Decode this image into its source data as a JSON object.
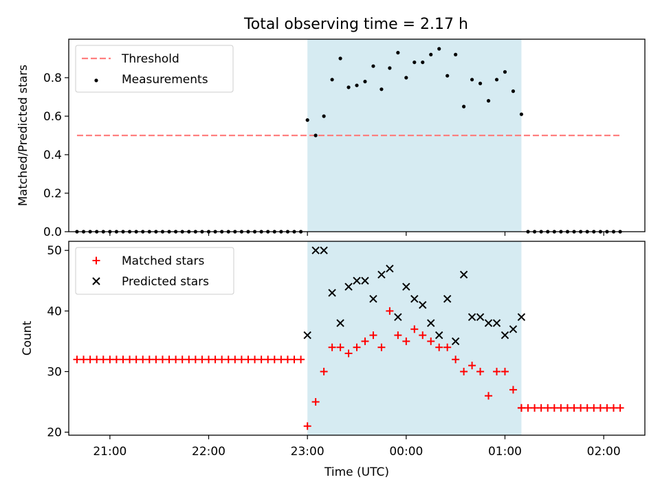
{
  "title": "Total observing time = 2.17 h",
  "colors": {
    "threshold": "#ff7f7f",
    "measurement": "#000000",
    "matched": "#ff0000",
    "predicted": "#000000",
    "observing_window": "#add8e6"
  },
  "chart_data": [
    {
      "type": "scatter",
      "panel": "top",
      "title": "Total observing time = 2.17 h",
      "xlabel": "",
      "ylabel": "Matched/Predicted stars",
      "x_axis": "time",
      "xlim": [
        "20:35",
        "02:25"
      ],
      "ylim": [
        0,
        1.0
      ],
      "yticks": [
        0.0,
        0.2,
        0.4,
        0.6,
        0.8
      ],
      "ytick_labels": [
        "0.0",
        "0.2",
        "0.4",
        "0.6",
        "0.8"
      ],
      "xticks": [
        "21:00",
        "22:00",
        "23:00",
        "00:00",
        "01:00",
        "02:00"
      ],
      "grid": false,
      "legend_position": "top-left",
      "shaded_region": {
        "start": "23:00",
        "end": "01:10"
      },
      "threshold": {
        "name": "Threshold",
        "y": 0.5,
        "x_start": "20:40",
        "x_end": "02:10",
        "style": "dashed"
      },
      "series": [
        {
          "name": "Measurements",
          "marker": "dot",
          "x": [
            "20:40",
            "20:44",
            "20:48",
            "20:52",
            "20:56",
            "21:00",
            "21:04",
            "21:08",
            "21:12",
            "21:16",
            "21:20",
            "21:24",
            "21:28",
            "21:32",
            "21:36",
            "21:40",
            "21:44",
            "21:48",
            "21:52",
            "21:56",
            "22:00",
            "22:04",
            "22:08",
            "22:12",
            "22:16",
            "22:20",
            "22:24",
            "22:28",
            "22:32",
            "22:36",
            "22:40",
            "22:44",
            "22:48",
            "22:52",
            "22:56",
            "23:00",
            "23:05",
            "23:10",
            "23:15",
            "23:20",
            "23:25",
            "23:30",
            "23:35",
            "23:40",
            "23:45",
            "23:50",
            "23:55",
            "00:00",
            "00:05",
            "00:10",
            "00:15",
            "00:20",
            "00:25",
            "00:30",
            "00:35",
            "00:40",
            "00:45",
            "00:50",
            "00:55",
            "01:00",
            "01:05",
            "01:10",
            "01:14",
            "01:18",
            "01:22",
            "01:26",
            "01:30",
            "01:34",
            "01:38",
            "01:42",
            "01:46",
            "01:50",
            "01:54",
            "01:58",
            "02:02",
            "02:06",
            "02:10"
          ],
          "y": [
            0,
            0,
            0,
            0,
            0,
            0,
            0,
            0,
            0,
            0,
            0,
            0,
            0,
            0,
            0,
            0,
            0,
            0,
            0,
            0,
            0,
            0,
            0,
            0,
            0,
            0,
            0,
            0,
            0,
            0,
            0,
            0,
            0,
            0,
            0,
            0.58,
            0.5,
            0.6,
            0.79,
            0.9,
            0.75,
            0.76,
            0.78,
            0.86,
            0.74,
            0.85,
            0.93,
            0.8,
            0.88,
            0.88,
            0.92,
            0.95,
            0.81,
            0.92,
            0.65,
            0.79,
            0.77,
            0.68,
            0.79,
            0.83,
            0.73,
            0.61,
            0,
            0,
            0,
            0,
            0,
            0,
            0,
            0,
            0,
            0,
            0,
            0,
            0,
            0,
            0
          ]
        }
      ]
    },
    {
      "type": "scatter",
      "panel": "bottom",
      "xlabel": "Time (UTC)",
      "ylabel": "Count",
      "x_axis": "time",
      "xlim": [
        "20:35",
        "02:25"
      ],
      "ylim": [
        19.5,
        51.5
      ],
      "yticks": [
        20,
        30,
        40,
        50
      ],
      "ytick_labels": [
        "20",
        "30",
        "40",
        "50"
      ],
      "xticks": [
        "21:00",
        "22:00",
        "23:00",
        "00:00",
        "01:00",
        "02:00"
      ],
      "xtick_labels": [
        "21:00",
        "22:00",
        "23:00",
        "00:00",
        "01:00",
        "02:00"
      ],
      "grid": false,
      "legend_position": "top-left",
      "shaded_region": {
        "start": "23:00",
        "end": "01:10"
      },
      "series": [
        {
          "name": "Matched stars",
          "marker": "plus",
          "x": [
            "20:40",
            "20:44",
            "20:48",
            "20:52",
            "20:56",
            "21:00",
            "21:04",
            "21:08",
            "21:12",
            "21:16",
            "21:20",
            "21:24",
            "21:28",
            "21:32",
            "21:36",
            "21:40",
            "21:44",
            "21:48",
            "21:52",
            "21:56",
            "22:00",
            "22:04",
            "22:08",
            "22:12",
            "22:16",
            "22:20",
            "22:24",
            "22:28",
            "22:32",
            "22:36",
            "22:40",
            "22:44",
            "22:48",
            "22:52",
            "22:56",
            "23:00",
            "23:05",
            "23:10",
            "23:15",
            "23:20",
            "23:25",
            "23:30",
            "23:35",
            "23:40",
            "23:45",
            "23:50",
            "23:55",
            "00:00",
            "00:05",
            "00:10",
            "00:15",
            "00:20",
            "00:25",
            "00:30",
            "00:35",
            "00:40",
            "00:45",
            "00:50",
            "00:55",
            "01:00",
            "01:05",
            "01:10",
            "01:10",
            "01:14",
            "01:18",
            "01:22",
            "01:26",
            "01:30",
            "01:34",
            "01:38",
            "01:42",
            "01:46",
            "01:50",
            "01:54",
            "01:58",
            "02:02",
            "02:06",
            "02:10"
          ],
          "y": [
            32,
            32,
            32,
            32,
            32,
            32,
            32,
            32,
            32,
            32,
            32,
            32,
            32,
            32,
            32,
            32,
            32,
            32,
            32,
            32,
            32,
            32,
            32,
            32,
            32,
            32,
            32,
            32,
            32,
            32,
            32,
            32,
            32,
            32,
            32,
            21,
            25,
            30,
            34,
            34,
            33,
            34,
            35,
            36,
            34,
            40,
            36,
            35,
            37,
            36,
            35,
            34,
            34,
            32,
            30,
            31,
            30,
            26,
            30,
            30,
            27,
            24,
            24,
            24,
            24,
            24,
            24,
            24,
            24,
            24,
            24,
            24,
            24,
            24,
            24,
            24,
            24,
            24
          ]
        },
        {
          "name": "Predicted stars",
          "marker": "x",
          "x": [
            "23:00",
            "23:05",
            "23:10",
            "23:15",
            "23:20",
            "23:25",
            "23:30",
            "23:35",
            "23:40",
            "23:45",
            "23:50",
            "23:55",
            "00:00",
            "00:05",
            "00:10",
            "00:15",
            "00:20",
            "00:25",
            "00:30",
            "00:35",
            "00:40",
            "00:45",
            "00:50",
            "00:55",
            "01:00",
            "01:05",
            "01:10"
          ],
          "y": [
            36,
            50,
            50,
            43,
            38,
            44,
            45,
            45,
            42,
            46,
            47,
            39,
            44,
            42,
            41,
            38,
            36,
            42,
            35,
            46,
            39,
            39,
            38,
            38,
            36,
            37,
            39
          ]
        }
      ]
    }
  ]
}
